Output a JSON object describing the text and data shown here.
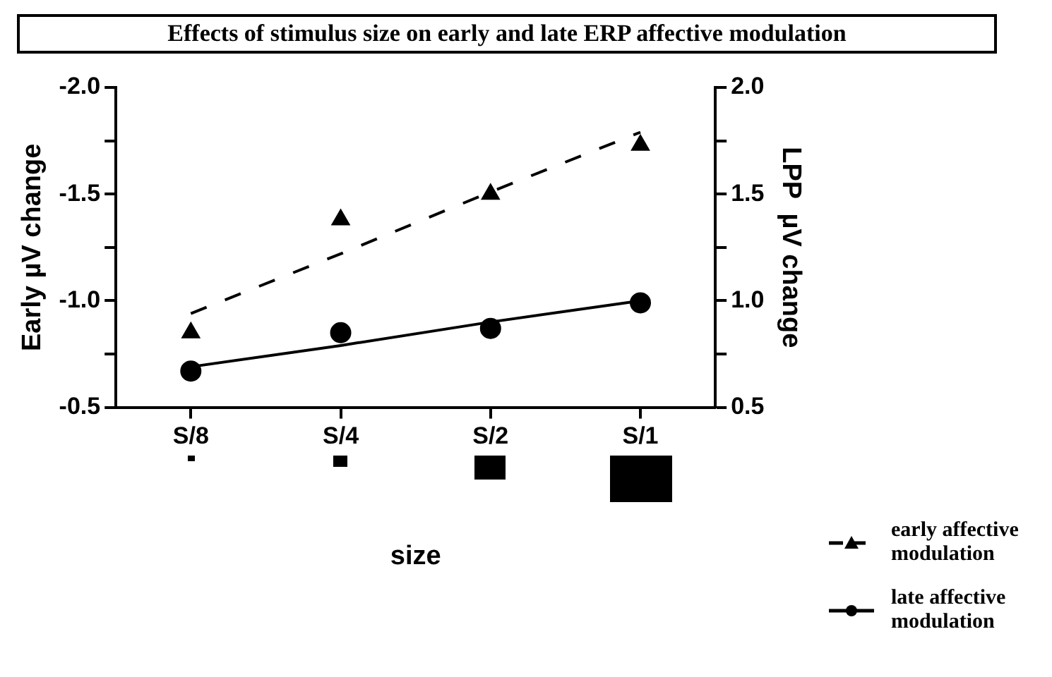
{
  "chart_data": {
    "type": "line",
    "title": "Effects of stimulus size on early and late ERP affective modulation",
    "xlabel": "size",
    "ylabel": "Early µV change",
    "y2label": "LPP  µV change",
    "categories": [
      "S/8",
      "S/4",
      "S/2",
      "S/1"
    ],
    "ylim": [
      -0.5,
      -2.0
    ],
    "yticks": [
      -0.5,
      {
        "value": -0.75,
        "label": null
      },
      {
        "value": -1,
        "label": "-1.0"
      },
      {
        "value": -1.25,
        "label": null
      },
      -1.5,
      {
        "value": -1.75,
        "label": null
      },
      {
        "value": -2,
        "label": "-2.0"
      }
    ],
    "y2lim": [
      0.5,
      2.0
    ],
    "y2ticks": [
      0.5,
      {
        "value": 0.75,
        "label": null
      },
      {
        "value": 1,
        "label": "1.0"
      },
      {
        "value": 1.25,
        "label": null
      },
      1.5,
      {
        "value": 1.75,
        "label": null
      },
      {
        "value": 2,
        "label": "2.0"
      }
    ],
    "grid": false,
    "legend": "bottom right",
    "series": [
      {
        "name": "early affective modulation",
        "type": "scatter",
        "axis": "y",
        "marker": "triangle",
        "color": "#000000",
        "values": [
          -0.85,
          -1.38,
          -1.5,
          -1.73
        ]
      },
      {
        "name": "late affective modulation",
        "type": "scatter",
        "axis": "y2",
        "marker": "circle",
        "color": "#000000",
        "values": [
          0.67,
          0.85,
          0.87,
          0.99
        ]
      },
      {
        "type": "line",
        "axis": "y",
        "marker": "none",
        "line_style": "dashed",
        "color": "#000000",
        "values": [
          -0.94,
          -1.22,
          -1.51,
          -1.79
        ]
      },
      {
        "type": "line",
        "axis": "y2",
        "marker": "none",
        "line_style": "solid",
        "color": "#000000",
        "values": [
          0.69,
          0.79,
          0.9,
          1.0
        ]
      }
    ]
  }
}
